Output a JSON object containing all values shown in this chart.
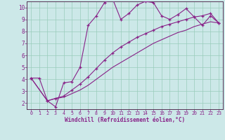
{
  "xlabel": "Windchill (Refroidissement éolien,°C)",
  "bg_color": "#cce8e8",
  "grid_color": "#99ccbb",
  "line_color": "#882288",
  "spine_color": "#553355",
  "xlim": [
    -0.5,
    23.5
  ],
  "ylim": [
    1.5,
    10.5
  ],
  "xticks": [
    0,
    1,
    2,
    3,
    4,
    5,
    6,
    7,
    8,
    9,
    10,
    11,
    12,
    13,
    14,
    15,
    16,
    17,
    18,
    19,
    20,
    21,
    22,
    23
  ],
  "yticks": [
    2,
    3,
    4,
    5,
    6,
    7,
    8,
    9,
    10
  ],
  "series1_x": [
    0,
    1,
    2,
    3,
    4,
    5,
    6,
    7,
    8,
    9,
    10,
    11,
    12,
    13,
    14,
    15,
    16,
    17,
    18,
    19,
    20,
    21,
    22,
    23
  ],
  "series1_y": [
    4.1,
    4.1,
    2.2,
    1.7,
    3.7,
    3.8,
    5.0,
    8.5,
    9.3,
    10.4,
    10.7,
    9.0,
    9.5,
    10.2,
    10.5,
    10.4,
    9.3,
    9.0,
    9.4,
    9.9,
    9.2,
    8.5,
    9.3,
    8.7
  ],
  "series2_x": [
    0,
    2,
    3,
    4,
    5,
    6,
    7,
    8,
    9,
    10,
    11,
    12,
    13,
    14,
    15,
    16,
    17,
    18,
    19,
    20,
    21,
    22,
    23
  ],
  "series2_y": [
    4.1,
    2.2,
    2.4,
    2.6,
    3.1,
    3.6,
    4.2,
    4.9,
    5.6,
    6.2,
    6.7,
    7.1,
    7.5,
    7.8,
    8.1,
    8.4,
    8.6,
    8.8,
    9.0,
    9.2,
    9.3,
    9.5,
    8.7
  ],
  "series3_x": [
    0,
    2,
    3,
    4,
    5,
    6,
    7,
    8,
    9,
    10,
    11,
    12,
    13,
    14,
    15,
    16,
    17,
    18,
    19,
    20,
    21,
    22,
    23
  ],
  "series3_y": [
    4.1,
    2.2,
    2.4,
    2.5,
    2.8,
    3.1,
    3.5,
    4.0,
    4.5,
    5.0,
    5.4,
    5.8,
    6.2,
    6.6,
    7.0,
    7.3,
    7.6,
    7.9,
    8.1,
    8.4,
    8.6,
    8.8,
    8.7
  ]
}
